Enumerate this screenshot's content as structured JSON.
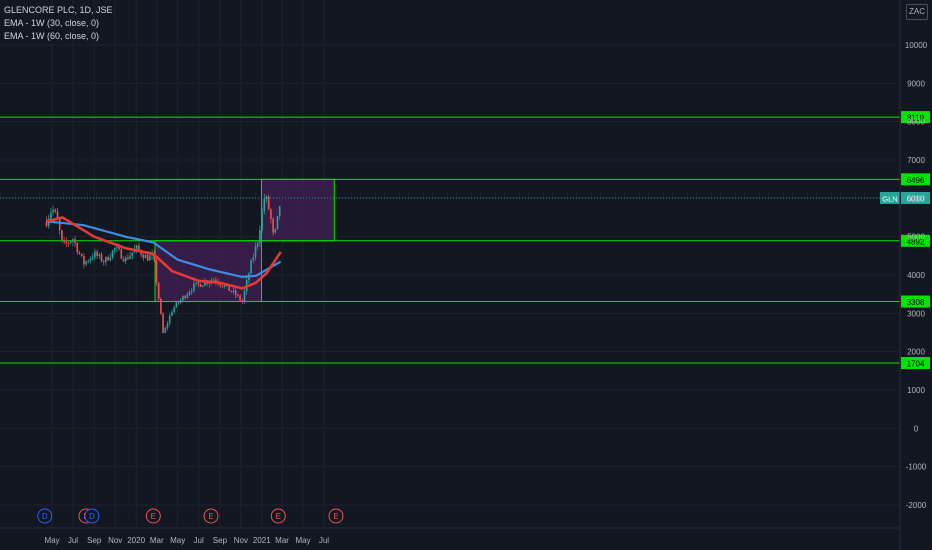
{
  "legend": {
    "symbol": "GLENCORE PLC, 1D, JSE",
    "ema1": "EMA - 1W (30, close, 0)",
    "ema2": "EMA - 1W (60, close, 0)"
  },
  "currency": "ZAC",
  "colors": {
    "background": "#131722",
    "grid": "#1e222d",
    "text": "#b2b5be",
    "level_line": "#00e600",
    "zone_fill": "#3c1f4e",
    "ema_short": "#e53935",
    "ema_long": "#3d8ee0",
    "candle_up": "#26a69a",
    "candle_down": "#ef5350",
    "event_earnings": "#ef5350",
    "event_dividend": "#2962ff",
    "price_badge": "#26a69a"
  },
  "chart_data": {
    "type": "candlestick",
    "y_ticks": [
      10000,
      9000,
      8000,
      7000,
      6000,
      5000,
      4000,
      3000,
      2000,
      1000,
      0,
      -1000,
      -2000
    ],
    "ylim": [
      -2200,
      10700
    ],
    "x_ticks": [
      "May",
      "Jul",
      "Sep",
      "Nov",
      "2020",
      "Mar",
      "May",
      "Jul",
      "Sep",
      "Nov",
      "2021",
      "Mar",
      "May",
      "Jul"
    ],
    "horizontal_levels": [
      8119,
      6496,
      4892,
      3308,
      1704
    ],
    "current_price": 6010,
    "current_price_label": "GLN",
    "zones": [
      {
        "start": "2020-02-25",
        "end": "2020-12-31",
        "low": 3308,
        "high": 4892
      },
      {
        "start": "2020-12-31",
        "end": "2021-07-31",
        "low": 4892,
        "high": 6496
      }
    ],
    "price_path": [
      [
        "2019-04-15",
        5400
      ],
      [
        "2019-05-01",
        5750
      ],
      [
        "2019-05-15",
        5500
      ],
      [
        "2019-06-01",
        4750
      ],
      [
        "2019-07-01",
        4950
      ],
      [
        "2019-08-01",
        4300
      ],
      [
        "2019-09-01",
        4550
      ],
      [
        "2019-10-01",
        4350
      ],
      [
        "2019-11-01",
        4700
      ],
      [
        "2019-12-01",
        4400
      ],
      [
        "2020-01-01",
        4700
      ],
      [
        "2020-02-01",
        4450
      ],
      [
        "2020-02-20",
        4500
      ],
      [
        "2020-03-20",
        2450
      ],
      [
        "2020-04-15",
        3100
      ],
      [
        "2020-05-15",
        3400
      ],
      [
        "2020-06-15",
        3700
      ],
      [
        "2020-07-15",
        3800
      ],
      [
        "2020-08-15",
        3900
      ],
      [
        "2020-09-15",
        3700
      ],
      [
        "2020-10-15",
        3500
      ],
      [
        "2020-11-05",
        3300
      ],
      [
        "2020-12-01",
        4300
      ],
      [
        "2020-12-20",
        4900
      ],
      [
        "2021-01-10",
        6100
      ],
      [
        "2021-01-25",
        5600
      ],
      [
        "2021-02-05",
        4900
      ],
      [
        "2021-02-15",
        5400
      ],
      [
        "2021-02-25",
        6000
      ]
    ],
    "ema_short": [
      [
        "2019-04-15",
        5400
      ],
      [
        "2019-06-01",
        5500
      ],
      [
        "2019-09-01",
        5000
      ],
      [
        "2019-12-01",
        4700
      ],
      [
        "2020-02-20",
        4550
      ],
      [
        "2020-04-15",
        4100
      ],
      [
        "2020-07-01",
        3850
      ],
      [
        "2020-09-01",
        3800
      ],
      [
        "2020-11-05",
        3650
      ],
      [
        "2020-12-15",
        3800
      ],
      [
        "2021-01-15",
        4050
      ],
      [
        "2021-02-25",
        4600
      ]
    ],
    "ema_long": [
      [
        "2019-04-15",
        5400
      ],
      [
        "2019-08-01",
        5300
      ],
      [
        "2019-12-01",
        5000
      ],
      [
        "2020-02-20",
        4850
      ],
      [
        "2020-05-01",
        4400
      ],
      [
        "2020-08-01",
        4150
      ],
      [
        "2020-11-05",
        3950
      ],
      [
        "2020-12-15",
        3980
      ],
      [
        "2021-02-25",
        4350
      ]
    ],
    "events": [
      {
        "type": "D",
        "date": "2019-04-10"
      },
      {
        "type": "E",
        "date": "2019-08-08"
      },
      {
        "type": "D",
        "date": "2019-08-25"
      },
      {
        "type": "E",
        "date": "2020-02-20"
      },
      {
        "type": "E",
        "date": "2020-08-06"
      },
      {
        "type": "E",
        "date": "2021-02-18"
      },
      {
        "type": "E",
        "date": "2021-08-05"
      }
    ]
  }
}
